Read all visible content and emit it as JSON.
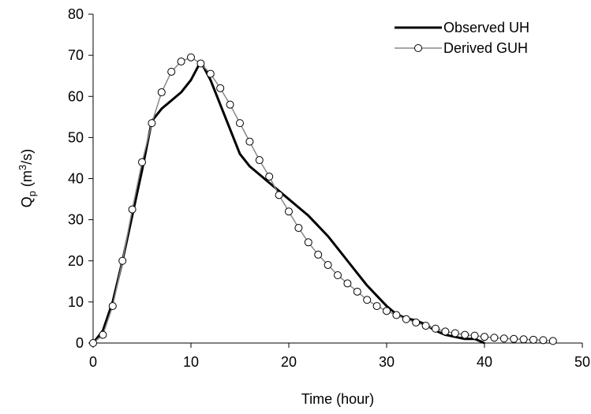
{
  "chart_data": {
    "type": "line",
    "xlabel": "Time (hour)",
    "ylabel": [
      "Q",
      "p",
      " (m",
      "3",
      "/s)"
    ],
    "xlim": [
      0,
      50
    ],
    "xticks": [
      0,
      10,
      20,
      30,
      40,
      50
    ],
    "ylim": [
      0,
      80
    ],
    "yticks": [
      0,
      10,
      20,
      30,
      40,
      50,
      60,
      70,
      80
    ],
    "grid": false,
    "legend": "upper right",
    "series": [
      {
        "name": "Observed UH",
        "color": "#000000",
        "marker": "none",
        "x": [
          0,
          1,
          2,
          3,
          4,
          5,
          6,
          7,
          8,
          9,
          10,
          11,
          12,
          13,
          14,
          15,
          16,
          17,
          18,
          19,
          20,
          21,
          22,
          23,
          24,
          25,
          26,
          27,
          28,
          29,
          30,
          31,
          32,
          33,
          34,
          35,
          36,
          37,
          38,
          39,
          40
        ],
        "values": [
          0,
          3,
          10,
          20,
          31,
          42,
          54,
          57,
          59,
          61,
          64,
          68.5,
          64,
          58,
          52,
          46,
          43,
          41,
          39,
          37,
          35,
          33,
          31,
          28.5,
          26,
          23,
          20,
          17,
          14,
          11.5,
          9,
          7,
          6,
          5.5,
          4.5,
          3,
          2,
          1.5,
          1,
          1,
          0
        ]
      },
      {
        "name": "Derived GUH",
        "color": "#888888",
        "marker": "circle",
        "x": [
          0,
          1,
          2,
          3,
          4,
          5,
          6,
          7,
          8,
          9,
          10,
          11,
          12,
          13,
          14,
          15,
          16,
          17,
          18,
          19,
          20,
          21,
          22,
          23,
          24,
          25,
          26,
          27,
          28,
          29,
          30,
          31,
          32,
          33,
          34,
          35,
          36,
          37,
          38,
          39,
          40,
          41,
          42,
          43,
          44,
          45,
          46,
          47
        ],
        "values": [
          0,
          2,
          9,
          20,
          32.5,
          44,
          53.5,
          61,
          66,
          68.5,
          69.5,
          68,
          65.5,
          62,
          58,
          53.5,
          49,
          44.5,
          40.5,
          36,
          32,
          28,
          24.5,
          21.5,
          19,
          16.5,
          14.5,
          12.5,
          10.5,
          9,
          7.8,
          6.8,
          5.8,
          5,
          4.2,
          3.5,
          2.8,
          2.4,
          2,
          1.8,
          1.5,
          1.3,
          1.1,
          1,
          0.9,
          0.8,
          0.7,
          0.5
        ]
      }
    ]
  }
}
